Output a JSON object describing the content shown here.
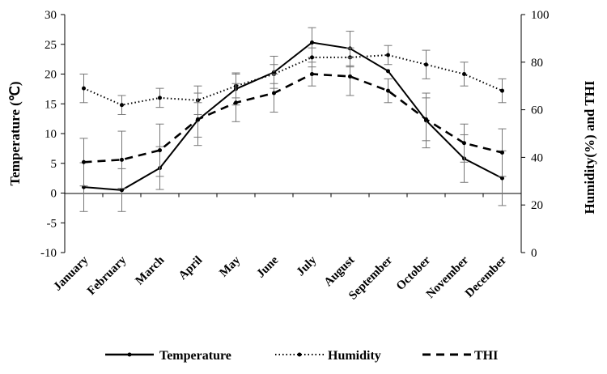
{
  "chart_data": {
    "type": "line",
    "categories": [
      "January",
      "February",
      "March",
      "April",
      "May",
      "June",
      "July",
      "August",
      "September",
      "October",
      "November",
      "December"
    ],
    "y_left": {
      "label": "Temperature (℃)",
      "range": [
        -10,
        30
      ],
      "ticks": [
        "-10",
        "-5",
        "0",
        "5",
        "10",
        "15",
        "20",
        "25",
        "30"
      ]
    },
    "y_right": {
      "label": "Humidity(%) and THI",
      "range": [
        0,
        100
      ],
      "ticks": [
        "0",
        "20",
        "40",
        "60",
        "80",
        "100"
      ]
    },
    "series": [
      {
        "name": "Temperature",
        "axis": "left",
        "style": "solid",
        "values": [
          1.0,
          0.5,
          4.2,
          12.3,
          17.5,
          20.3,
          25.3,
          24.3,
          20.5,
          12.2,
          5.8,
          2.5
        ],
        "errors": [
          4.1,
          3.6,
          3.6,
          2.9,
          2.7,
          2.7,
          2.5,
          2.9,
          0,
          4.6,
          4.0,
          4.6
        ]
      },
      {
        "name": "Humidity",
        "axis": "right",
        "style": "dotted",
        "values": [
          69,
          62,
          65,
          64,
          70,
          75,
          82,
          82,
          83,
          79,
          75,
          68
        ],
        "errors": [
          6,
          4,
          4,
          6,
          5,
          4,
          4,
          4,
          4,
          6,
          5,
          5
        ]
      },
      {
        "name": "THI",
        "axis": "right",
        "style": "dashed",
        "values": [
          38,
          39,
          43,
          56,
          63,
          67,
          75,
          74,
          68,
          56,
          46,
          42
        ],
        "errors": [
          10,
          12,
          11,
          11,
          8,
          8,
          5,
          8,
          5,
          9,
          8,
          10
        ]
      }
    ],
    "legend": {
      "position": "bottom",
      "entries": [
        "Temperature",
        "Humidity",
        "THI"
      ]
    },
    "grid": false
  },
  "colors": {
    "line": "#000000",
    "errorbar": "#777777"
  }
}
